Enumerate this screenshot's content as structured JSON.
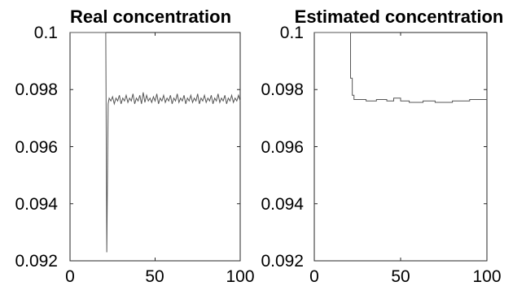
{
  "chart_data": [
    {
      "type": "line",
      "title": "Real concentration",
      "xlim": [
        0,
        100
      ],
      "ylim": [
        0.092,
        0.1
      ],
      "xticks": [
        "0",
        "50",
        "100"
      ],
      "yticks": [
        "0.1",
        "0.098",
        "0.096",
        "0.094",
        "0.092"
      ],
      "ytick_values": [
        0.1,
        0.098,
        0.096,
        0.094,
        0.092
      ],
      "xtick_values": [
        0,
        50,
        100
      ],
      "line_color": "#555555",
      "grid": false,
      "series": [
        {
          "x": [
            0,
            21,
            21.6,
            22.4,
            23,
            24,
            25,
            26,
            27,
            28,
            29,
            30,
            31,
            32,
            33,
            34,
            35,
            36,
            37,
            38,
            39,
            40,
            41,
            42,
            43,
            44,
            45,
            46,
            47,
            48,
            49,
            50,
            51,
            52,
            53,
            54,
            55,
            56,
            57,
            58,
            59,
            60,
            61,
            62,
            63,
            64,
            65,
            66,
            67,
            68,
            69,
            70,
            71,
            72,
            73,
            74,
            75,
            76,
            77,
            78,
            79,
            80,
            81,
            82,
            83,
            84,
            85,
            86,
            87,
            88,
            89,
            90,
            91,
            92,
            93,
            94,
            95,
            96,
            97,
            98,
            99,
            100
          ],
          "y": [
            0.1,
            0.1,
            0.0923,
            0.0975,
            0.0977,
            0.0976,
            0.09775,
            0.0975,
            0.0977,
            0.0976,
            0.0978,
            0.0975,
            0.0977,
            0.0976,
            0.0978,
            0.09755,
            0.0977,
            0.0976,
            0.09785,
            0.0975,
            0.0977,
            0.0976,
            0.0978,
            0.0975,
            0.0979,
            0.09755,
            0.0978,
            0.0976,
            0.0977,
            0.09755,
            0.09775,
            0.0976,
            0.09785,
            0.0975,
            0.0977,
            0.0976,
            0.0978,
            0.09755,
            0.0977,
            0.0976,
            0.0978,
            0.0975,
            0.0977,
            0.0976,
            0.09785,
            0.09755,
            0.0977,
            0.0976,
            0.0978,
            0.0975,
            0.0977,
            0.0976,
            0.0978,
            0.09755,
            0.0977,
            0.0976,
            0.09785,
            0.0975,
            0.0977,
            0.0976,
            0.0978,
            0.09755,
            0.0977,
            0.0976,
            0.0978,
            0.0975,
            0.0977,
            0.0976,
            0.09785,
            0.09755,
            0.0977,
            0.0976,
            0.0978,
            0.0975,
            0.0977,
            0.0976,
            0.0978,
            0.09755,
            0.0977,
            0.0976,
            0.0978,
            0.0976
          ]
        }
      ]
    },
    {
      "type": "line",
      "title": "Estimated concentration",
      "xlim": [
        0,
        100
      ],
      "ylim": [
        0.092,
        0.1
      ],
      "xticks": [
        "0",
        "50",
        "100"
      ],
      "yticks": [
        "0.1",
        "0.098",
        "0.096",
        "0.094",
        "0.092"
      ],
      "ytick_values": [
        0.1,
        0.098,
        0.096,
        0.094,
        0.092
      ],
      "xtick_values": [
        0,
        50,
        100
      ],
      "line_color": "#555555",
      "grid": false,
      "series": [
        {
          "x": [
            0,
            21,
            21,
            22,
            22,
            23,
            23,
            30,
            30,
            36,
            36,
            42,
            42,
            46,
            46,
            50,
            50,
            55,
            55,
            63,
            63,
            70,
            70,
            80,
            80,
            90,
            90,
            100
          ],
          "y": [
            0.1,
            0.1,
            0.0984,
            0.0984,
            0.0978,
            0.0978,
            0.09765,
            0.09765,
            0.0976,
            0.0976,
            0.09765,
            0.09765,
            0.0976,
            0.0976,
            0.0977,
            0.0977,
            0.0976,
            0.0976,
            0.09755,
            0.09755,
            0.0976,
            0.0976,
            0.09755,
            0.09755,
            0.0976,
            0.0976,
            0.09765,
            0.09765
          ]
        }
      ]
    }
  ]
}
